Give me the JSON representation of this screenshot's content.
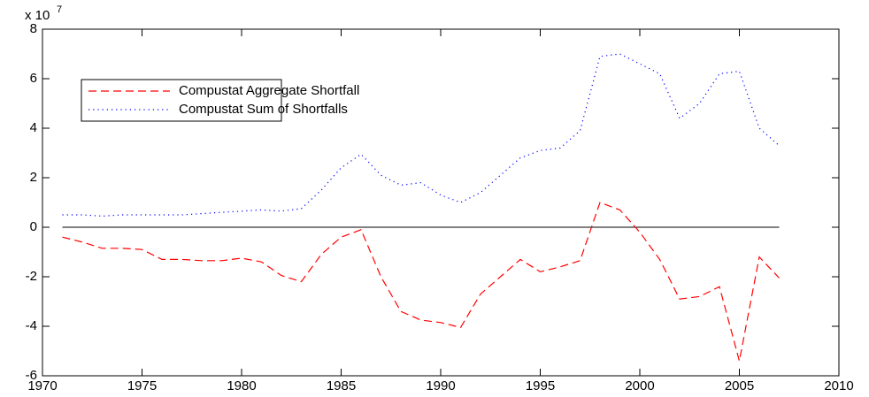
{
  "chart_data": {
    "type": "line",
    "y_multiplier": "x 10",
    "y_multiplier_exponent": "7",
    "x": [
      1971,
      1972,
      1973,
      1974,
      1975,
      1976,
      1977,
      1978,
      1979,
      1980,
      1981,
      1982,
      1983,
      1984,
      1985,
      1986,
      1987,
      1988,
      1989,
      1990,
      1991,
      1992,
      1993,
      1994,
      1995,
      1996,
      1997,
      1998,
      1999,
      2000,
      2001,
      2002,
      2003,
      2004,
      2005,
      2006,
      2007
    ],
    "series": [
      {
        "name": "Compustat Aggregate Shortfall",
        "color": "#ff0000",
        "dash": "dashed",
        "values": [
          -0.4,
          -0.6,
          -0.85,
          -0.85,
          -0.9,
          -1.3,
          -1.3,
          -1.35,
          -1.35,
          -1.25,
          -1.4,
          -1.95,
          -2.2,
          -1.1,
          -0.4,
          -0.1,
          -2.0,
          -3.4,
          -3.75,
          -3.85,
          -4.05,
          -2.7,
          -2.0,
          -1.3,
          -1.8,
          -1.6,
          -1.35,
          1.0,
          0.7,
          -0.2,
          -1.3,
          -2.9,
          -2.8,
          -2.4,
          -5.4,
          -1.2,
          -2.05
        ]
      },
      {
        "name": "Compustat Sum of Shortfalls",
        "color": "#0000ff",
        "dash": "dotted",
        "values": [
          0.5,
          0.5,
          0.45,
          0.5,
          0.5,
          0.5,
          0.5,
          0.55,
          0.6,
          0.65,
          0.7,
          0.65,
          0.75,
          1.5,
          2.4,
          2.95,
          2.1,
          1.7,
          1.8,
          1.3,
          1.0,
          1.4,
          2.1,
          2.8,
          3.1,
          3.2,
          3.9,
          6.9,
          7.0,
          6.6,
          6.2,
          4.4,
          5.0,
          6.2,
          6.3,
          4.0,
          3.3
        ]
      }
    ],
    "hline": 0,
    "xlim": [
      1970,
      2010
    ],
    "xticks": [
      1970,
      1975,
      1980,
      1985,
      1990,
      1995,
      2000,
      2005,
      2010
    ],
    "ylim": [
      -6,
      8
    ],
    "yticks": [
      -6,
      -4,
      -2,
      0,
      2,
      4,
      6,
      8
    ],
    "grid": false,
    "legend": "upper left"
  }
}
